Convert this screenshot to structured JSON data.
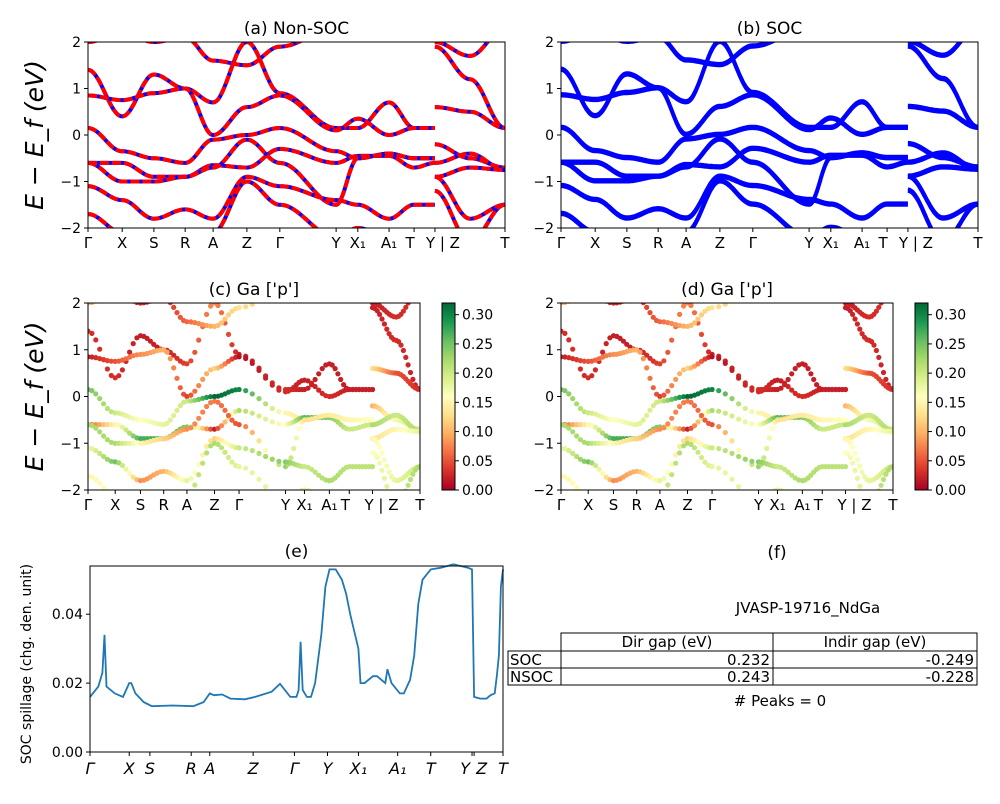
{
  "chart_data": [
    {
      "type": "line",
      "panel": "a",
      "title": "(a) Non-SOC",
      "ylabel": "E − E_f (eV)",
      "ylim": [
        -2,
        2
      ],
      "yticks": [
        "−2",
        "−1",
        "0",
        "1",
        "2"
      ],
      "xtick_labels": [
        "Γ",
        "X",
        "S",
        "R",
        "A",
        "Z",
        "Γ",
        "Y",
        "X₁",
        "A₁",
        "T",
        "Y | Z",
        "T"
      ],
      "style": "red dashed over blue"
    },
    {
      "type": "line",
      "panel": "b",
      "title": "(b) SOC",
      "ylim": [
        -2,
        2
      ],
      "yticks": [
        "−2",
        "−1",
        "0",
        "1",
        "2"
      ],
      "xtick_labels": [
        "Γ",
        "X",
        "S",
        "R",
        "A",
        "Z",
        "Γ",
        "Y",
        "X₁",
        "A₁",
        "T",
        "Y | Z",
        "T"
      ],
      "style": "blue"
    },
    {
      "type": "scatter",
      "panel": "c",
      "title": "(c)  Ga ['p']",
      "ylabel": "E − E_f (eV)",
      "ylim": [
        -2,
        2
      ],
      "yticks": [
        "−2",
        "−1",
        "0",
        "1",
        "2"
      ],
      "xtick_labels": [
        "Γ",
        "X",
        "S",
        "R",
        "A",
        "Z",
        "Γ",
        "Y",
        "X₁",
        "A₁",
        "T",
        "Y | Z",
        "T"
      ],
      "colorbar": {
        "colormap": "RdYlGn",
        "range": [
          0,
          0.32
        ],
        "ticks": [
          "0.00",
          "0.05",
          "0.10",
          "0.15",
          "0.20",
          "0.25",
          "0.30"
        ]
      }
    },
    {
      "type": "scatter",
      "panel": "d",
      "title": "(d) Ga ['p']",
      "ylim": [
        -2,
        2
      ],
      "yticks": [
        "−2",
        "−1",
        "0",
        "1",
        "2"
      ],
      "xtick_labels": [
        "Γ",
        "X",
        "S",
        "R",
        "A",
        "Z",
        "Γ",
        "Y",
        "X₁",
        "A₁",
        "T",
        "Y | Z",
        "T"
      ],
      "colorbar": {
        "colormap": "RdYlGn",
        "range": [
          0,
          0.32
        ],
        "ticks": [
          "0.00",
          "0.05",
          "0.10",
          "0.15",
          "0.20",
          "0.25",
          "0.30"
        ]
      }
    },
    {
      "type": "line",
      "panel": "e",
      "title": "(e)",
      "ylabel": "SOC spillage (chg. den. unit)",
      "ylim": [
        0,
        0.054
      ],
      "yticks": [
        "0.00",
        "0.02",
        "0.04"
      ],
      "xtick_labels": [
        "Γ",
        "X",
        "S",
        "R",
        "A",
        "Z",
        "Γ",
        "Y",
        "X₁",
        "A₁",
        "T",
        "Y",
        "Z",
        "T"
      ],
      "xtick_k": [
        0,
        19,
        29,
        49,
        58,
        79,
        99,
        115,
        130,
        149,
        165,
        185,
        186,
        200
      ],
      "color": "#1f77b4",
      "k": [
        0,
        4,
        6,
        7,
        8,
        12,
        16,
        19,
        20,
        22,
        26,
        30,
        40,
        50,
        55,
        58,
        60,
        64,
        68,
        75,
        80,
        88,
        92,
        97,
        100,
        101,
        102,
        103,
        105,
        107,
        109,
        112,
        114,
        116,
        119,
        122,
        124,
        126,
        130,
        131,
        133,
        137,
        139,
        143,
        144,
        146,
        150,
        152,
        155,
        157,
        159,
        161,
        165,
        170,
        176,
        183,
        185,
        186,
        189,
        192,
        194,
        196,
        197,
        198,
        199,
        200
      ],
      "values": [
        0.016,
        0.019,
        0.023,
        0.034,
        0.019,
        0.017,
        0.016,
        0.02,
        0.02,
        0.017,
        0.0145,
        0.0133,
        0.0135,
        0.0133,
        0.0145,
        0.017,
        0.0165,
        0.0167,
        0.0155,
        0.0153,
        0.016,
        0.0175,
        0.0198,
        0.016,
        0.016,
        0.018,
        0.032,
        0.018,
        0.016,
        0.016,
        0.02,
        0.034,
        0.048,
        0.053,
        0.053,
        0.05,
        0.046,
        0.04,
        0.03,
        0.02,
        0.02,
        0.022,
        0.022,
        0.02,
        0.024,
        0.02,
        0.017,
        0.017,
        0.021,
        0.028,
        0.043,
        0.05,
        0.053,
        0.0535,
        0.0545,
        0.0535,
        0.053,
        0.016,
        0.0155,
        0.0155,
        0.0165,
        0.017,
        0.022,
        0.028,
        0.048,
        0.053
      ]
    }
  ],
  "bands": {
    "k_nodes": [
      0,
      0.082,
      0.158,
      0.233,
      0.3,
      0.381,
      0.46,
      0.595,
      0.647,
      0.722,
      0.782,
      0.832
    ],
    "k_nodes_seg2": [
      0.832,
      0.916,
      1.0
    ],
    "energies": [
      {
        "seg1": [
          1.4,
          0.4,
          1.3,
          1.0,
          0.7,
          2.0,
          0.9,
          0.15,
          0.15,
          0.7,
          0.15,
          0.15
        ],
        "seg2": [
          1.9,
          1.2,
          0.15
        ],
        "weight": [
          0.03,
          0.03,
          0.02,
          0.02,
          0.04,
          0.08,
          0.02,
          0.03,
          0.02,
          0.02,
          0.02,
          0.02
        ],
        "weight2": [
          0.02,
          0.03,
          0.02
        ]
      },
      {
        "seg1": [
          0.85,
          0.75,
          0.9,
          1.0,
          0.0,
          0.6,
          0.85,
          0.1,
          0.35,
          0.0,
          0.15,
          0.15
        ],
        "seg2": [
          0.6,
          0.5,
          0.15
        ],
        "weight": [
          0.02,
          0.05,
          0.08,
          0.1,
          0.04,
          0.12,
          0.01,
          0.03,
          0.02,
          0.03,
          0.02,
          0.02
        ],
        "weight2": [
          0.13,
          0.05,
          0.03
        ]
      },
      {
        "seg1": [
          0.15,
          -0.35,
          -0.5,
          -0.6,
          -0.1,
          0.0,
          0.15,
          -0.35,
          -0.5,
          -0.4,
          -0.5,
          -0.5
        ],
        "seg2": [
          -0.2,
          -0.5,
          -0.7
        ],
        "weight": [
          0.25,
          0.2,
          0.16,
          0.18,
          0.2,
          0.32,
          0.3,
          0.15,
          0.14,
          0.15,
          0.16,
          0.17
        ],
        "weight2": [
          0.1,
          0.17,
          0.2
        ]
      },
      {
        "seg1": [
          -0.6,
          -0.6,
          -0.9,
          -0.9,
          -0.65,
          -0.7,
          -0.3,
          -0.6,
          -0.45,
          -0.45,
          -0.7,
          -0.6
        ],
        "seg2": [
          -0.6,
          -0.4,
          -0.75
        ],
        "weight": [
          0.05,
          0.15,
          0.27,
          0.27,
          0.24,
          0.02,
          0.22,
          0.16,
          0.26,
          0.24,
          0.2,
          0.2
        ],
        "weight2": [
          0.22,
          0.2,
          0.22
        ]
      },
      {
        "seg1": [
          -0.6,
          -1.0,
          -1.0,
          -0.9,
          -0.7,
          -0.1,
          -0.6,
          -1.5,
          -0.5,
          -0.4,
          -0.5,
          -0.5
        ],
        "seg2": [
          -0.9,
          -0.7,
          -0.75
        ],
        "weight": [
          0.22,
          0.22,
          0.15,
          0.12,
          0.08,
          0.07,
          0.05,
          0.23,
          0.13,
          0.14,
          0.15,
          0.16
        ],
        "weight2": [
          0.13,
          0.15,
          0.18
        ]
      },
      {
        "seg1": [
          -1.1,
          -1.4,
          -1.8,
          -1.6,
          -1.8,
          -0.9,
          -1.1,
          -1.4,
          -1.5,
          -1.8,
          -1.5,
          -1.5
        ],
        "seg2": [
          -0.9,
          -1.8,
          -1.5
        ],
        "weight": [
          0.17,
          0.25,
          0.08,
          0.1,
          0.18,
          0.12,
          0.2,
          0.24,
          0.2,
          0.22,
          0.21,
          0.21
        ],
        "weight2": [
          0.15,
          0.18,
          0.2
        ]
      },
      {
        "seg1": [
          -1.7,
          -2.1,
          -2.3,
          -2.3,
          -2.1,
          -1.0,
          -1.5,
          -2.2,
          -2.0,
          -2.2,
          -2.2,
          -2.2
        ],
        "seg2": [
          -1.2,
          -2.3,
          -1.5
        ],
        "weight": [
          0.15,
          0.16,
          0.15,
          0.15,
          0.2,
          0.22,
          0.18,
          0.18,
          0.18,
          0.18,
          0.18,
          0.18
        ],
        "weight2": [
          0.16,
          0.2,
          0.22
        ]
      },
      {
        "seg1": [
          2.0,
          2.2,
          2.0,
          2.1,
          1.6,
          1.5,
          1.9,
          2.3,
          2.3,
          2.3,
          2.3,
          2.3
        ],
        "seg2": [
          2.0,
          1.7,
          2.3
        ],
        "weight": [
          0.1,
          0.08,
          0.02,
          0.03,
          0.06,
          0.1,
          0.13,
          0.1,
          0.1,
          0.1,
          0.1,
          0.1
        ],
        "weight2": [
          0.02,
          0.03,
          0.03
        ]
      }
    ]
  },
  "colors": {
    "nonsoc_dash": "#ff0000",
    "nonsoc_line": "#0000ff",
    "soc_line": "#0000ff",
    "spillage": "#1f77b4"
  },
  "panel_f": {
    "title": "(f)",
    "material": "JVASP-19716_NdGa",
    "table": {
      "columns": [
        "Dir gap (eV)",
        "Indir gap (eV)"
      ],
      "rows": [
        {
          "label": "SOC",
          "values": [
            "0.232",
            "-0.249"
          ]
        },
        {
          "label": "NSOC",
          "values": [
            "0.243",
            "-0.228"
          ]
        }
      ]
    },
    "peaks": "# Peaks = 0"
  }
}
